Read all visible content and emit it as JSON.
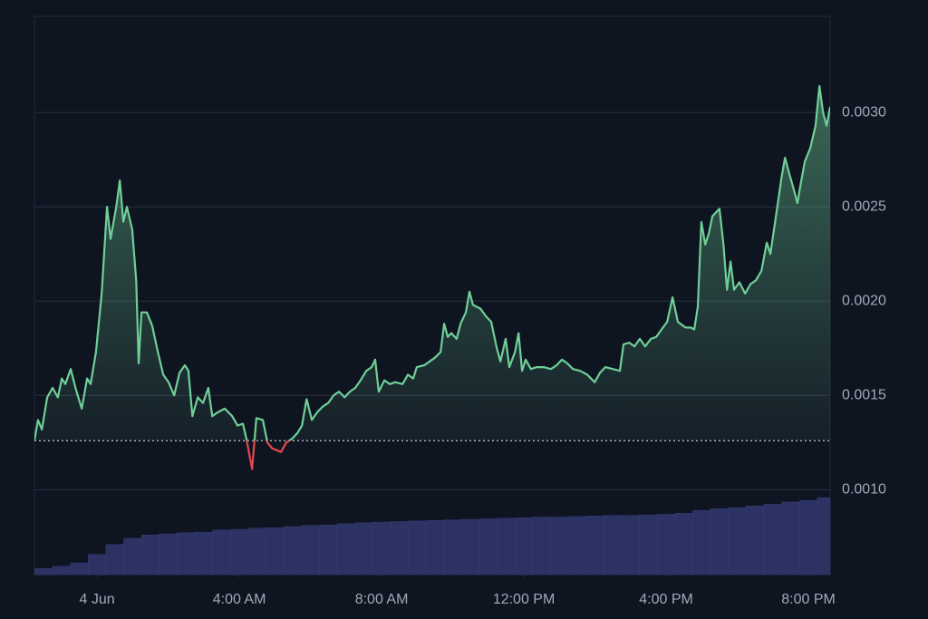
{
  "chart_data": {
    "type": "line",
    "xlim": [
      -1.76,
      20.61
    ],
    "xticks": [
      {
        "value": 0,
        "label": "4 Jun"
      },
      {
        "value": 4,
        "label": "4:00 AM"
      },
      {
        "value": 8,
        "label": "8:00 AM"
      },
      {
        "value": 12,
        "label": "12:00 PM"
      },
      {
        "value": 16,
        "label": "4:00 PM"
      },
      {
        "value": 20,
        "label": "8:00 PM"
      }
    ],
    "ylim": [
      0.00055,
      0.00351
    ],
    "yticks": [
      {
        "value": 0.001,
        "label": "0.0010"
      },
      {
        "value": 0.0015,
        "label": "0.0015"
      },
      {
        "value": 0.002,
        "label": "0.0020"
      },
      {
        "value": 0.0025,
        "label": "0.0025"
      },
      {
        "value": 0.003,
        "label": "0.0030"
      }
    ],
    "y2lim": [
      0,
      100
    ],
    "grid": true,
    "baseline": 0.00126,
    "series": [
      {
        "type": "line",
        "color": "#6fcf97",
        "below_color": "#e5484d",
        "x": [
          -1.76,
          -1.66,
          -1.55,
          -1.4,
          -1.25,
          -1.1,
          -0.99,
          -0.89,
          -0.74,
          -0.59,
          -0.43,
          -0.28,
          -0.18,
          -0.03,
          0.13,
          0.28,
          0.38,
          0.54,
          0.64,
          0.74,
          0.84,
          0.99,
          1.1,
          1.17,
          1.25,
          1.4,
          1.55,
          1.71,
          1.86,
          2.01,
          2.17,
          2.32,
          2.47,
          2.57,
          2.68,
          2.83,
          2.98,
          3.13,
          3.24,
          3.39,
          3.59,
          3.8,
          3.95,
          4.1,
          4.2,
          4.36,
          4.48,
          4.66,
          4.79,
          4.92,
          5.17,
          5.32,
          5.48,
          5.63,
          5.76,
          5.89,
          6.04,
          6.19,
          6.34,
          6.5,
          6.65,
          6.8,
          6.96,
          7.11,
          7.26,
          7.41,
          7.57,
          7.72,
          7.82,
          7.92,
          8.08,
          8.23,
          8.38,
          8.59,
          8.74,
          8.89,
          8.99,
          9.2,
          9.35,
          9.5,
          9.66,
          9.76,
          9.86,
          9.96,
          10.11,
          10.22,
          10.37,
          10.47,
          10.57,
          10.78,
          10.93,
          11.08,
          11.24,
          11.34,
          11.49,
          11.59,
          11.75,
          11.85,
          11.95,
          12.05,
          12.2,
          12.36,
          12.56,
          12.76,
          12.92,
          13.07,
          13.22,
          13.38,
          13.58,
          13.78,
          13.99,
          14.14,
          14.29,
          14.5,
          14.7,
          14.8,
          14.96,
          15.11,
          15.26,
          15.41,
          15.57,
          15.72,
          15.87,
          16.03,
          16.18,
          16.33,
          16.54,
          16.69,
          16.79,
          16.89,
          16.99,
          17.1,
          17.2,
          17.3,
          17.4,
          17.5,
          17.61,
          17.71,
          17.81,
          17.91,
          18.06,
          18.22,
          18.37,
          18.52,
          18.68,
          18.83,
          18.93,
          19.08,
          19.24,
          19.34,
          19.44,
          19.59,
          19.69,
          19.8,
          19.9,
          20.05,
          20.2,
          20.31,
          20.41,
          20.51,
          20.61
        ],
        "values": [
          0.00126,
          0.00137,
          0.00132,
          0.00149,
          0.00154,
          0.00149,
          0.00159,
          0.00156,
          0.00164,
          0.00153,
          0.00143,
          0.00159,
          0.00156,
          0.00173,
          0.00204,
          0.0025,
          0.00233,
          0.0025,
          0.00264,
          0.00242,
          0.0025,
          0.00238,
          0.00211,
          0.00167,
          0.00194,
          0.00194,
          0.00187,
          0.00173,
          0.00161,
          0.00157,
          0.0015,
          0.00162,
          0.00166,
          0.00163,
          0.00139,
          0.00149,
          0.00146,
          0.00154,
          0.00139,
          0.00141,
          0.00143,
          0.00139,
          0.00134,
          0.00135,
          0.00127,
          0.00111,
          0.00138,
          0.00137,
          0.00125,
          0.00122,
          0.0012,
          0.00125,
          0.00127,
          0.0013,
          0.00134,
          0.00148,
          0.00137,
          0.00141,
          0.00144,
          0.00146,
          0.0015,
          0.00152,
          0.00149,
          0.00152,
          0.00154,
          0.00158,
          0.00163,
          0.00165,
          0.00169,
          0.00152,
          0.00158,
          0.00156,
          0.00157,
          0.00156,
          0.00161,
          0.00159,
          0.00165,
          0.00166,
          0.00168,
          0.0017,
          0.00173,
          0.00188,
          0.00181,
          0.00183,
          0.0018,
          0.00188,
          0.00194,
          0.00205,
          0.00198,
          0.00196,
          0.00192,
          0.00189,
          0.00175,
          0.00168,
          0.0018,
          0.00165,
          0.00173,
          0.00183,
          0.00163,
          0.00169,
          0.00164,
          0.00165,
          0.00165,
          0.00164,
          0.00166,
          0.00169,
          0.00167,
          0.00164,
          0.00163,
          0.00161,
          0.00157,
          0.00162,
          0.00165,
          0.00164,
          0.00163,
          0.00177,
          0.00178,
          0.00176,
          0.0018,
          0.00176,
          0.0018,
          0.00181,
          0.00185,
          0.00189,
          0.00202,
          0.00189,
          0.00186,
          0.00186,
          0.00185,
          0.00197,
          0.00242,
          0.0023,
          0.00236,
          0.00245,
          0.00247,
          0.00249,
          0.0023,
          0.00206,
          0.00221,
          0.00206,
          0.0021,
          0.00204,
          0.00209,
          0.00211,
          0.00216,
          0.00231,
          0.00225,
          0.00244,
          0.00265,
          0.00276,
          0.00269,
          0.00259,
          0.00252,
          0.00264,
          0.00274,
          0.00281,
          0.00293,
          0.00314,
          0.003,
          0.00293,
          0.00303
        ]
      },
      {
        "type": "bar",
        "axis": "y2",
        "color": "#2c3262",
        "x": [
          -1.5,
          -1,
          -0.5,
          0,
          0.5,
          1,
          1.5,
          2,
          2.5,
          3,
          3.5,
          4,
          4.5,
          5,
          5.5,
          6,
          6.5,
          7,
          7.5,
          8,
          8.5,
          9,
          9.5,
          10,
          10.5,
          11,
          11.5,
          12,
          12.5,
          13,
          13.5,
          14,
          14.5,
          15,
          15.5,
          16,
          16.5,
          17,
          17.5,
          18,
          18.5,
          19,
          19.5,
          20,
          20.5
        ],
        "values": [
          1.1,
          1.5,
          2.1,
          3.6,
          5.4,
          6.5,
          7.1,
          7.3,
          7.5,
          7.6,
          8.0,
          8.1,
          8.3,
          8.4,
          8.6,
          8.8,
          8.9,
          9.1,
          9.3,
          9.4,
          9.5,
          9.6,
          9.7,
          9.8,
          9.9,
          10.0,
          10.1,
          10.2,
          10.3,
          10.3,
          10.4,
          10.5,
          10.6,
          10.6,
          10.7,
          10.8,
          11.0,
          11.5,
          11.8,
          12.0,
          12.3,
          12.6,
          13.0,
          13.3,
          13.8
        ]
      }
    ]
  }
}
